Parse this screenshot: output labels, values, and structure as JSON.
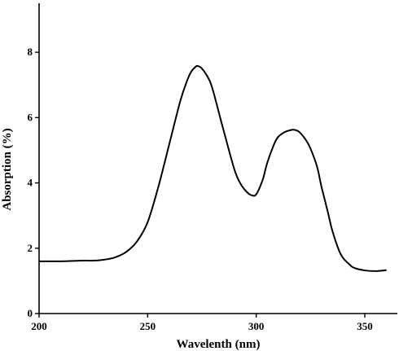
{
  "chart_data": {
    "type": "line",
    "title": "",
    "xlabel": "Wavelenth  (nm)",
    "ylabel": "Absorption (%)",
    "xlim": [
      200,
      365
    ],
    "ylim": [
      0,
      9.5
    ],
    "xticks": [
      200,
      250,
      300,
      350
    ],
    "yticks": [
      0,
      2,
      4,
      6,
      8
    ],
    "grid": false,
    "series": [
      {
        "name": "",
        "x": [
          200,
          210,
          220,
          225,
          230,
          235,
          240,
          245,
          250,
          255,
          260,
          265,
          268,
          270,
          272,
          273,
          275,
          278,
          280,
          285,
          290,
          293,
          296,
          298,
          300,
          303,
          305,
          308,
          310,
          313,
          316,
          318,
          320,
          323,
          325,
          328,
          330,
          333,
          335,
          338,
          340,
          343,
          345,
          350,
          355,
          360
        ],
        "y": [
          1.6,
          1.6,
          1.62,
          1.62,
          1.65,
          1.72,
          1.88,
          2.2,
          2.8,
          3.9,
          5.2,
          6.5,
          7.1,
          7.4,
          7.55,
          7.58,
          7.5,
          7.2,
          6.85,
          5.6,
          4.4,
          3.95,
          3.7,
          3.62,
          3.65,
          4.1,
          4.6,
          5.15,
          5.4,
          5.55,
          5.62,
          5.62,
          5.55,
          5.3,
          5.05,
          4.5,
          3.9,
          3.1,
          2.55,
          1.95,
          1.7,
          1.5,
          1.4,
          1.32,
          1.3,
          1.33
        ]
      }
    ]
  }
}
